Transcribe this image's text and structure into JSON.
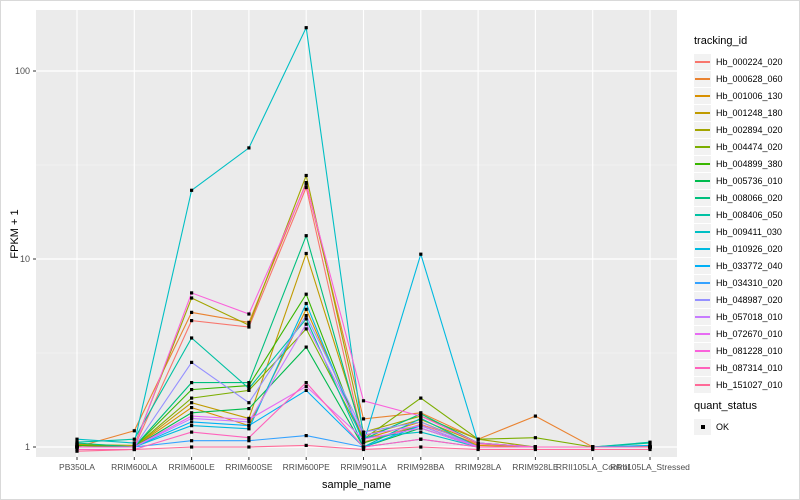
{
  "chart_data": {
    "type": "line",
    "xlabel": "sample_name",
    "ylabel": "FPKM + 1",
    "y_scale": "log10",
    "y_ticks": [
      1,
      10,
      100
    ],
    "y_minor": [
      3.1623,
      31.623
    ],
    "ylim": [
      0.89,
      210
    ],
    "legend_title": "tracking_id",
    "legend2_title": "quant_status",
    "legend2_items": [
      {
        "label": "OK",
        "marker": "black-square"
      }
    ],
    "panel_bg": "#EBEBEB",
    "grid_color": "#FFFFFF",
    "tick_color": "#333333",
    "tick_label_color": "#4D4D4D",
    "point_color": "#000000",
    "categories": [
      "PB350LA",
      "RRIM600LA",
      "RRIM600LE",
      "RRIM600SE",
      "RRIM600PE",
      "RRIM901LA",
      "RRIM928BA",
      "RRIM928LA",
      "RRIM928LE",
      "RRII105LA_Control",
      "RRII105LA_Stressed"
    ],
    "series": [
      {
        "name": "Hb_000224_020",
        "color": "#F8766D",
        "values": [
          1.04,
          1.0,
          4.7,
          4.35,
          24.0,
          1.06,
          1.32,
          1.04,
          1.0,
          1.0,
          1.0
        ]
      },
      {
        "name": "Hb_000628_060",
        "color": "#EA8331",
        "values": [
          1.0,
          1.22,
          5.2,
          4.6,
          25.5,
          1.41,
          1.52,
          1.1,
          1.46,
          1.0,
          1.01
        ]
      },
      {
        "name": "Hb_001006_130",
        "color": "#D89000",
        "values": [
          1.02,
          1.0,
          1.62,
          1.3,
          5.4,
          1.1,
          1.36,
          1.02,
          1.0,
          1.0,
          1.0
        ]
      },
      {
        "name": "Hb_001248_180",
        "color": "#C09B00",
        "values": [
          1.0,
          1.0,
          1.72,
          1.42,
          10.7,
          1.15,
          1.4,
          1.05,
          1.0,
          1.0,
          1.0
        ]
      },
      {
        "name": "Hb_002894_020",
        "color": "#A3A500",
        "values": [
          1.03,
          1.02,
          6.2,
          4.45,
          27.8,
          1.2,
          1.46,
          1.1,
          1.0,
          1.0,
          1.0
        ]
      },
      {
        "name": "Hb_004474_020",
        "color": "#7CAE00",
        "values": [
          1.0,
          1.0,
          1.82,
          2.0,
          4.25,
          1.1,
          1.82,
          1.1,
          1.12,
          1.0,
          1.0
        ]
      },
      {
        "name": "Hb_004899_380",
        "color": "#39B600",
        "values": [
          1.02,
          1.0,
          2.02,
          2.12,
          6.5,
          1.05,
          1.3,
          1.0,
          1.0,
          1.0,
          1.0
        ]
      },
      {
        "name": "Hb_005736_010",
        "color": "#00BB4E",
        "values": [
          1.0,
          1.0,
          1.52,
          1.6,
          3.4,
          1.0,
          1.26,
          1.0,
          1.0,
          1.0,
          1.0
        ]
      },
      {
        "name": "Hb_008066_020",
        "color": "#00BF7D",
        "values": [
          1.05,
          1.0,
          2.2,
          2.2,
          13.3,
          1.1,
          1.5,
          1.05,
          1.0,
          1.0,
          1.05
        ]
      },
      {
        "name": "Hb_008406_050",
        "color": "#00C1A3",
        "values": [
          1.06,
          1.1,
          3.8,
          2.05,
          4.8,
          1.0,
          1.42,
          1.0,
          1.0,
          1.0,
          1.06
        ]
      },
      {
        "name": "Hb_009411_030",
        "color": "#00BFC4",
        "values": [
          1.1,
          1.05,
          23.2,
          39.0,
          170.0,
          1.12,
          1.2,
          1.0,
          1.0,
          1.0,
          1.0
        ]
      },
      {
        "name": "Hb_010926_020",
        "color": "#00BAE0",
        "values": [
          1.0,
          1.0,
          1.3,
          1.25,
          5.8,
          1.05,
          10.6,
          1.05,
          1.0,
          1.0,
          1.0
        ]
      },
      {
        "name": "Hb_033772_040",
        "color": "#00B0F6",
        "values": [
          1.0,
          1.0,
          1.36,
          1.3,
          2.0,
          1.0,
          1.3,
          1.0,
          1.0,
          1.0,
          1.02
        ]
      },
      {
        "name": "Hb_034310_020",
        "color": "#35A2FF",
        "values": [
          1.0,
          1.0,
          1.08,
          1.08,
          1.15,
          1.0,
          1.1,
          1.0,
          1.0,
          1.0,
          1.0
        ]
      },
      {
        "name": "Hb_048987_020",
        "color": "#9590FF",
        "values": [
          1.0,
          1.0,
          2.82,
          1.72,
          5.0,
          1.2,
          1.36,
          1.0,
          1.0,
          1.0,
          1.0
        ]
      },
      {
        "name": "Hb_057018_010",
        "color": "#C77CFF",
        "values": [
          1.0,
          1.0,
          1.42,
          1.36,
          4.5,
          1.16,
          1.3,
          1.0,
          1.0,
          1.0,
          1.0
        ]
      },
      {
        "name": "Hb_072670_010",
        "color": "#E76BF3",
        "values": [
          1.0,
          1.0,
          1.46,
          1.4,
          2.1,
          1.1,
          1.26,
          1.0,
          1.0,
          1.0,
          1.0
        ]
      },
      {
        "name": "Hb_081228_010",
        "color": "#FA62DB",
        "values": [
          1.0,
          1.0,
          6.6,
          5.1,
          25.0,
          1.76,
          1.46,
          1.05,
          1.0,
          1.0,
          1.0
        ]
      },
      {
        "name": "Hb_087314_010",
        "color": "#FF62BC",
        "values": [
          0.97,
          0.97,
          1.2,
          1.12,
          2.2,
          1.0,
          1.1,
          1.0,
          1.0,
          1.0,
          1.0
        ]
      },
      {
        "name": "Hb_151027_010",
        "color": "#FF6A98",
        "values": [
          0.95,
          0.97,
          1.0,
          1.0,
          1.02,
          0.97,
          1.0,
          0.97,
          0.97,
          0.97,
          0.97
        ]
      }
    ]
  }
}
